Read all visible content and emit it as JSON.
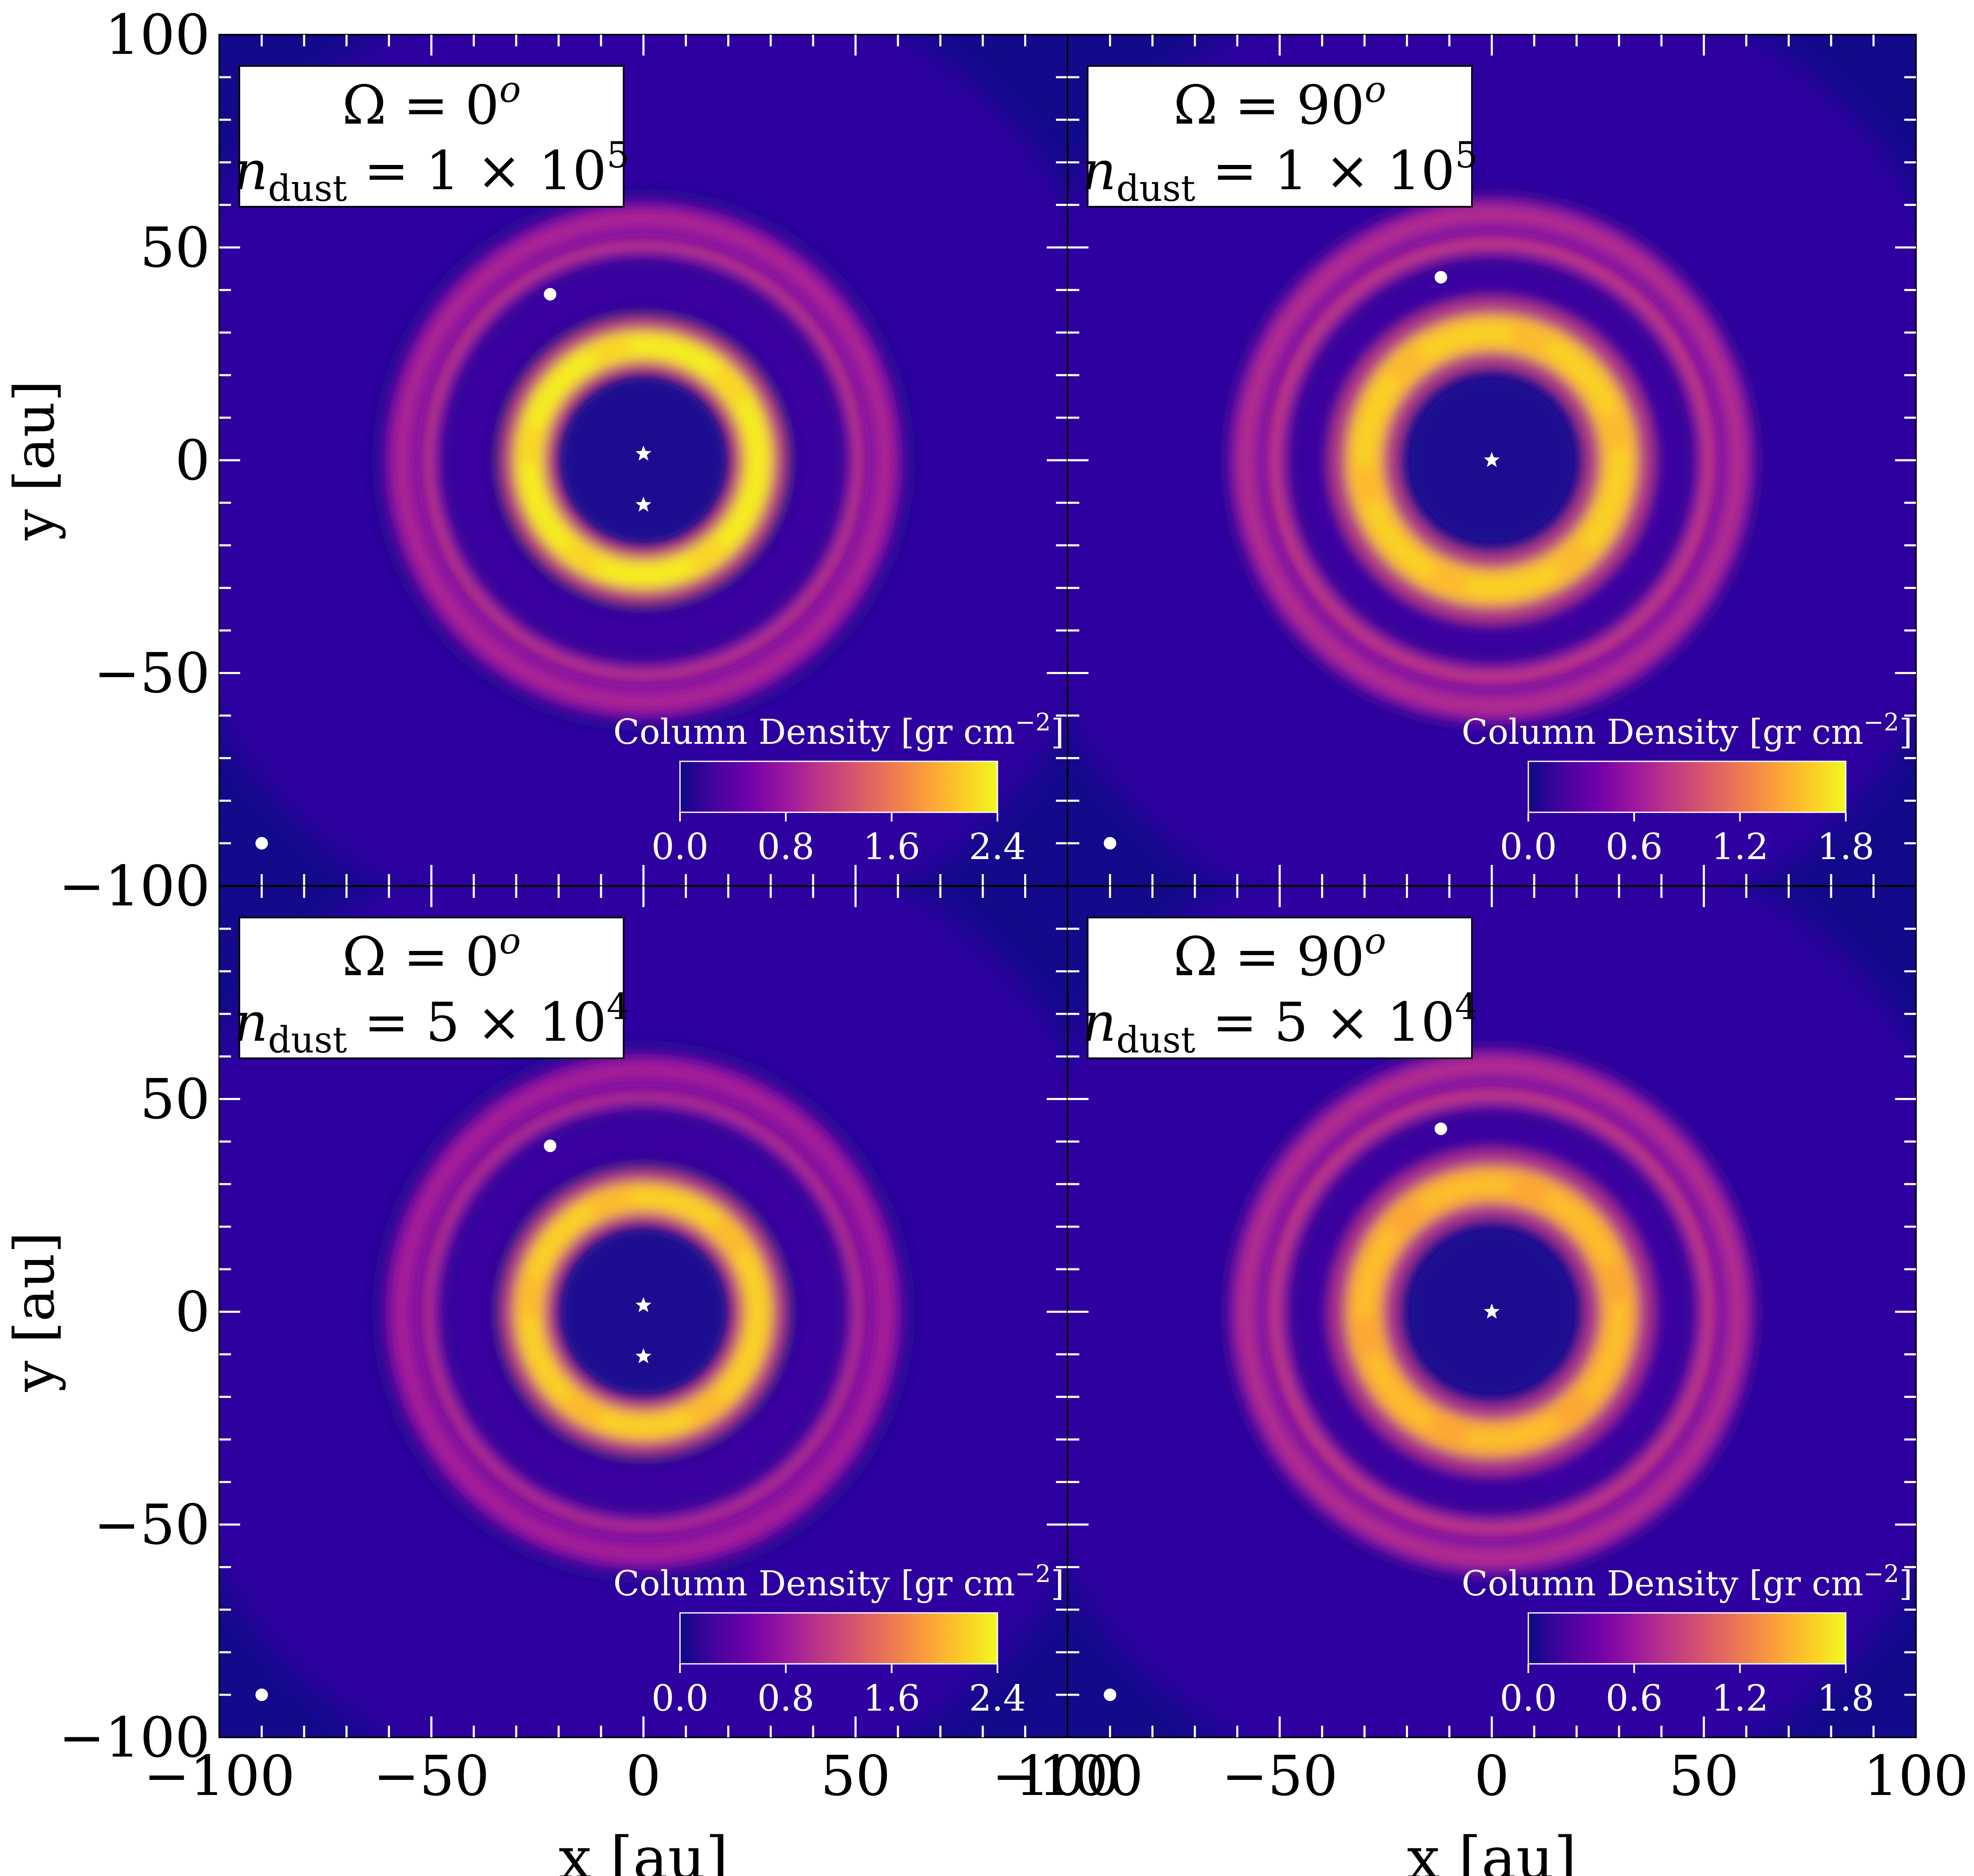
{
  "chart_data": [
    {
      "type": "heatmap",
      "position": "top-left",
      "title": "",
      "annotation": {
        "omega": "Ω = 0",
        "omega_sup": "o",
        "n_label": "n",
        "n_sub": "dust",
        "n_value": " = 1 × 10",
        "n_exp": "5"
      },
      "xlabel": "",
      "ylabel": "y [au]",
      "xlim": [
        -100,
        100
      ],
      "ylim": [
        -100,
        100
      ],
      "colorbar": {
        "label": "Column Density [gr cm",
        "label_exp": "−2",
        "label_end": "]",
        "range": [
          0.0,
          2.4
        ],
        "ticks": [
          "0.0",
          "0.8",
          "1.6",
          "2.4"
        ],
        "colormap": "plasma"
      },
      "stars": [
        {
          "x": 0,
          "y": 1.5
        },
        {
          "x": 0,
          "y": -10.5
        }
      ],
      "planet": {
        "x": -22,
        "y": 39
      },
      "beam": {
        "x": -90,
        "y": -90
      },
      "rings": [
        {
          "r": 27,
          "width": 7.5,
          "intensity": 0.92,
          "profile": "bright"
        },
        {
          "r": 52,
          "width": 5,
          "intensity": 0.45
        },
        {
          "r": 57,
          "width": 5,
          "intensity": 0.38
        }
      ]
    },
    {
      "type": "heatmap",
      "position": "top-right",
      "title": "",
      "annotation": {
        "omega": "Ω = 90",
        "omega_sup": "o",
        "n_label": "n",
        "n_sub": "dust",
        "n_value": " = 1 × 10",
        "n_exp": "5"
      },
      "xlabel": "",
      "ylabel": "",
      "xlim": [
        -100,
        100
      ],
      "ylim": [
        -100,
        100
      ],
      "colorbar": {
        "label": "Column Density [gr cm",
        "label_exp": "−2",
        "label_end": "]",
        "range": [
          0.0,
          1.8
        ],
        "ticks": [
          "0.0",
          "0.6",
          "1.2",
          "1.8"
        ],
        "colormap": "plasma"
      },
      "stars": [
        {
          "x": 0,
          "y": 0
        }
      ],
      "planet": {
        "x": -12,
        "y": 43
      },
      "beam": {
        "x": -90,
        "y": -90
      },
      "rings": [
        {
          "r": 30,
          "width": 9,
          "intensity": 0.85
        },
        {
          "r": 52,
          "width": 5,
          "intensity": 0.45
        },
        {
          "r": 58,
          "width": 5,
          "intensity": 0.4
        }
      ]
    },
    {
      "type": "heatmap",
      "position": "bottom-left",
      "title": "",
      "annotation": {
        "omega": "Ω = 0",
        "omega_sup": "o",
        "n_label": "n",
        "n_sub": "dust",
        "n_value": " = 5 × 10",
        "n_exp": "4"
      },
      "xlabel": "x [au]",
      "ylabel": "y [au]",
      "xlim": [
        -100,
        100
      ],
      "ylim": [
        -100,
        100
      ],
      "colorbar": {
        "label": "Column Density [gr cm",
        "label_exp": "−2",
        "label_end": "]",
        "range": [
          0.0,
          2.4
        ],
        "ticks": [
          "0.0",
          "0.8",
          "1.6",
          "2.4"
        ],
        "colormap": "plasma"
      },
      "stars": [
        {
          "x": 0,
          "y": 1.5
        },
        {
          "x": 0,
          "y": -10.5
        }
      ],
      "planet": {
        "x": -22,
        "y": 39
      },
      "beam": {
        "x": -90,
        "y": -90
      },
      "rings": [
        {
          "r": 27,
          "width": 7.5,
          "intensity": 0.85
        },
        {
          "r": 52,
          "width": 5,
          "intensity": 0.42
        },
        {
          "r": 57,
          "width": 5,
          "intensity": 0.36
        }
      ]
    },
    {
      "type": "heatmap",
      "position": "bottom-right",
      "title": "",
      "annotation": {
        "omega": "Ω = 90",
        "omega_sup": "o",
        "n_label": "n",
        "n_sub": "dust",
        "n_value": " = 5 × 10",
        "n_exp": "4"
      },
      "xlabel": "x [au]",
      "ylabel": "",
      "xlim": [
        -100,
        100
      ],
      "ylim": [
        -100,
        100
      ],
      "colorbar": {
        "label": "Column Density [gr cm",
        "label_exp": "−2",
        "label_end": "]",
        "range": [
          0.0,
          1.8
        ],
        "ticks": [
          "0.0",
          "0.6",
          "1.2",
          "1.8"
        ],
        "colormap": "plasma"
      },
      "stars": [
        {
          "x": 0,
          "y": 0
        }
      ],
      "planet": {
        "x": -12,
        "y": 43
      },
      "beam": {
        "x": -90,
        "y": -90
      },
      "rings": [
        {
          "r": 30,
          "width": 9,
          "intensity": 0.8
        },
        {
          "r": 52,
          "width": 5,
          "intensity": 0.45
        },
        {
          "r": 58,
          "width": 5,
          "intensity": 0.4
        }
      ]
    }
  ],
  "axes": {
    "xticks": [
      -100,
      -50,
      0,
      50,
      100
    ],
    "yticks": [
      -100,
      -50,
      0,
      50,
      100
    ],
    "xtick_labels": [
      "−100",
      "−50",
      "0",
      "50",
      "100"
    ],
    "ytick_labels": [
      "−100",
      "−50",
      "0",
      "50",
      "100"
    ],
    "xlabel": "x [au]",
    "ylabel": "y [au]"
  },
  "colors": {
    "plasma": [
      "#0d0887",
      "#46039f",
      "#7201a8",
      "#9c179e",
      "#bd3786",
      "#d8576b",
      "#ed7953",
      "#fb9f3a",
      "#fdca26",
      "#f0f921"
    ],
    "background": "#2d06a0",
    "outer_dark": "#120a8a",
    "gap_dark": "#1a0890",
    "frame": "#000000",
    "marker": "#ffffff"
  }
}
